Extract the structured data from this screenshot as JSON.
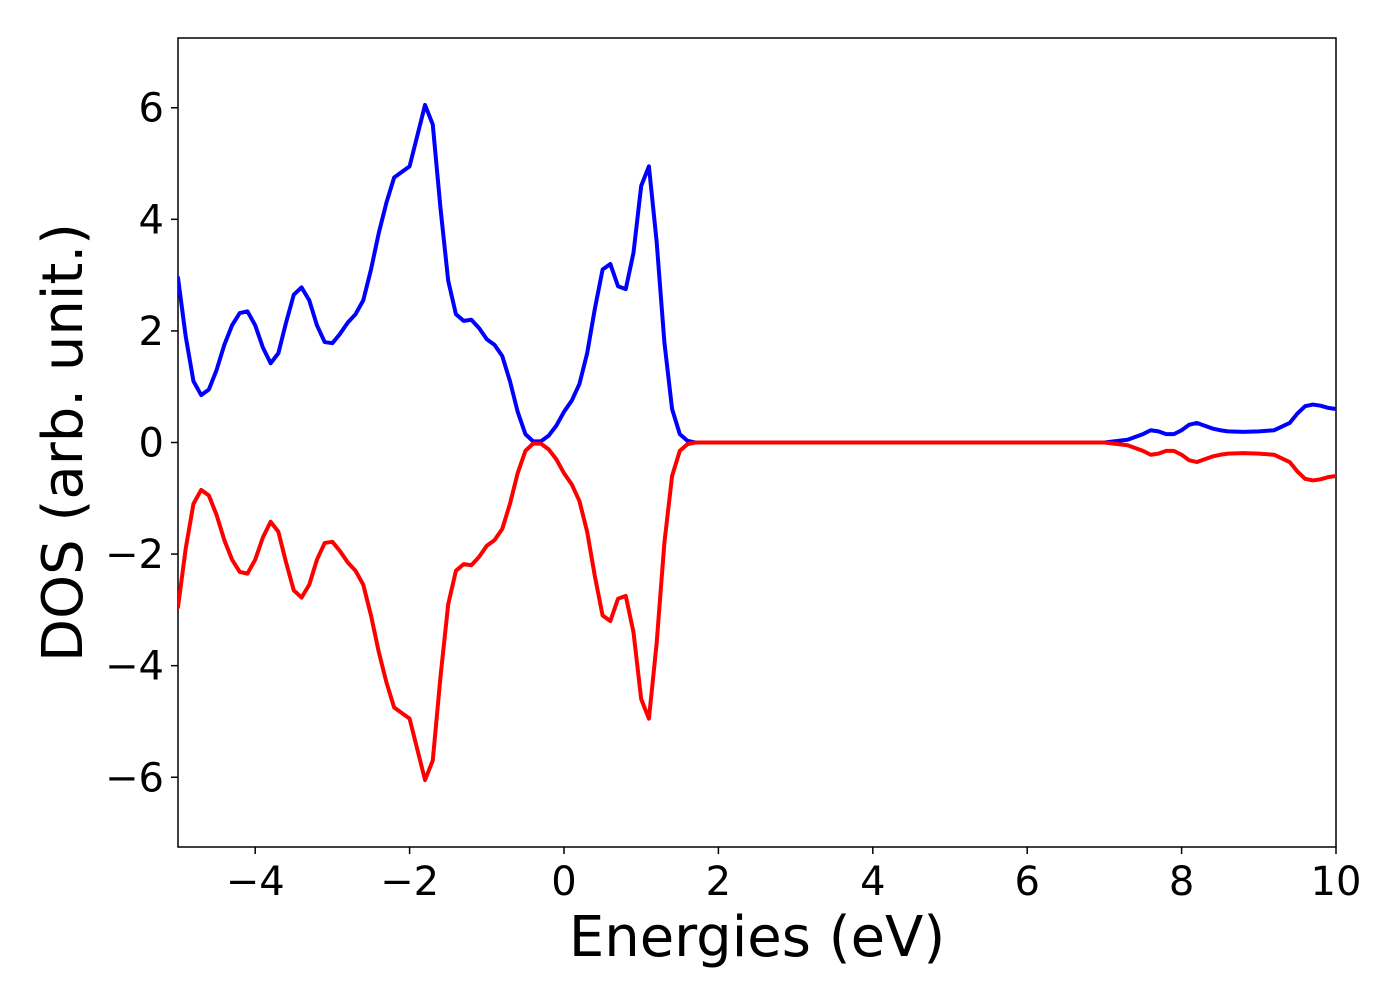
{
  "chart_data": {
    "type": "line",
    "title": "",
    "xlabel": "Energies (eV)",
    "ylabel": "DOS (arb. unit.)",
    "xlim": [
      -5,
      10
    ],
    "ylim": [
      -7.25,
      7.25
    ],
    "grid": false,
    "legend": "none",
    "x_ticks": [
      -4,
      -2,
      0,
      2,
      4,
      6,
      8,
      10
    ],
    "x_tick_labels": [
      "−4",
      "−2",
      "0",
      "2",
      "4",
      "6",
      "8",
      "10"
    ],
    "y_ticks": [
      -6,
      -4,
      -2,
      0,
      2,
      4,
      6
    ],
    "y_tick_labels": [
      "−6",
      "−4",
      "−2",
      "0",
      "2",
      "4",
      "6"
    ],
    "series": [
      {
        "color": "#0000ff",
        "x": [
          -5.0,
          -4.9,
          -4.8,
          -4.7,
          -4.6,
          -4.5,
          -4.4,
          -4.3,
          -4.2,
          -4.1,
          -4.0,
          -3.9,
          -3.8,
          -3.7,
          -3.6,
          -3.5,
          -3.4,
          -3.3,
          -3.2,
          -3.1,
          -3.0,
          -2.9,
          -2.8,
          -2.7,
          -2.6,
          -2.5,
          -2.4,
          -2.3,
          -2.2,
          -2.1,
          -2.0,
          -1.9,
          -1.8,
          -1.7,
          -1.6,
          -1.5,
          -1.4,
          -1.3,
          -1.2,
          -1.1,
          -1.0,
          -0.9,
          -0.8,
          -0.7,
          -0.6,
          -0.5,
          -0.4,
          -0.3,
          -0.2,
          -0.1,
          0.0,
          0.1,
          0.2,
          0.3,
          0.4,
          0.5,
          0.6,
          0.7,
          0.8,
          0.9,
          1.0,
          1.1,
          1.2,
          1.3,
          1.4,
          1.5,
          1.6,
          1.7,
          1.8,
          1.9,
          2.0,
          2.1,
          2.2,
          2.5,
          3.0,
          4.0,
          5.0,
          6.0,
          7.0,
          7.3,
          7.5,
          7.6,
          7.7,
          7.8,
          7.9,
          8.0,
          8.1,
          8.2,
          8.3,
          8.4,
          8.5,
          8.6,
          8.8,
          9.0,
          9.2,
          9.4,
          9.5,
          9.6,
          9.7,
          9.8,
          9.9,
          10.0
        ],
        "y": [
          2.95,
          1.9,
          1.1,
          0.85,
          0.95,
          1.3,
          1.75,
          2.1,
          2.32,
          2.35,
          2.1,
          1.7,
          1.42,
          1.6,
          2.15,
          2.65,
          2.78,
          2.55,
          2.1,
          1.8,
          1.78,
          1.95,
          2.15,
          2.3,
          2.55,
          3.1,
          3.75,
          4.3,
          4.75,
          4.85,
          4.95,
          5.5,
          6.05,
          5.7,
          4.2,
          2.9,
          2.3,
          2.18,
          2.2,
          2.05,
          1.85,
          1.75,
          1.55,
          1.1,
          0.55,
          0.15,
          0.02,
          0.02,
          0.12,
          0.3,
          0.55,
          0.75,
          1.05,
          1.6,
          2.4,
          3.1,
          3.2,
          2.8,
          2.75,
          3.4,
          4.6,
          4.95,
          3.6,
          1.8,
          0.6,
          0.15,
          0.03,
          0.0,
          0.0,
          0.0,
          0.0,
          0.0,
          0.0,
          0.0,
          0.0,
          0.0,
          0.0,
          0.0,
          0.0,
          0.05,
          0.15,
          0.22,
          0.2,
          0.15,
          0.15,
          0.22,
          0.32,
          0.35,
          0.3,
          0.25,
          0.22,
          0.2,
          0.19,
          0.2,
          0.22,
          0.35,
          0.52,
          0.65,
          0.68,
          0.66,
          0.62,
          0.6
        ]
      },
      {
        "color": "#ff0000",
        "x": [
          -5.0,
          -4.9,
          -4.8,
          -4.7,
          -4.6,
          -4.5,
          -4.4,
          -4.3,
          -4.2,
          -4.1,
          -4.0,
          -3.9,
          -3.8,
          -3.7,
          -3.6,
          -3.5,
          -3.4,
          -3.3,
          -3.2,
          -3.1,
          -3.0,
          -2.9,
          -2.8,
          -2.7,
          -2.6,
          -2.5,
          -2.4,
          -2.3,
          -2.2,
          -2.1,
          -2.0,
          -1.9,
          -1.8,
          -1.7,
          -1.6,
          -1.5,
          -1.4,
          -1.3,
          -1.2,
          -1.1,
          -1.0,
          -0.9,
          -0.8,
          -0.7,
          -0.6,
          -0.5,
          -0.4,
          -0.3,
          -0.2,
          -0.1,
          0.0,
          0.1,
          0.2,
          0.3,
          0.4,
          0.5,
          0.6,
          0.7,
          0.8,
          0.9,
          1.0,
          1.1,
          1.2,
          1.3,
          1.4,
          1.5,
          1.6,
          1.7,
          1.8,
          1.9,
          2.0,
          2.1,
          2.2,
          2.5,
          3.0,
          4.0,
          5.0,
          6.0,
          7.0,
          7.3,
          7.5,
          7.6,
          7.7,
          7.8,
          7.9,
          8.0,
          8.1,
          8.2,
          8.3,
          8.4,
          8.5,
          8.6,
          8.8,
          9.0,
          9.2,
          9.4,
          9.5,
          9.6,
          9.7,
          9.8,
          9.9,
          10.0
        ],
        "y": [
          -2.95,
          -1.9,
          -1.1,
          -0.85,
          -0.95,
          -1.3,
          -1.75,
          -2.1,
          -2.32,
          -2.35,
          -2.1,
          -1.7,
          -1.42,
          -1.6,
          -2.15,
          -2.65,
          -2.78,
          -2.55,
          -2.1,
          -1.8,
          -1.78,
          -1.95,
          -2.15,
          -2.3,
          -2.55,
          -3.1,
          -3.75,
          -4.3,
          -4.75,
          -4.85,
          -4.95,
          -5.5,
          -6.05,
          -5.7,
          -4.2,
          -2.9,
          -2.3,
          -2.18,
          -2.2,
          -2.05,
          -1.85,
          -1.75,
          -1.55,
          -1.1,
          -0.55,
          -0.15,
          -0.02,
          -0.02,
          -0.12,
          -0.3,
          -0.55,
          -0.75,
          -1.05,
          -1.6,
          -2.4,
          -3.1,
          -3.2,
          -2.8,
          -2.75,
          -3.4,
          -4.6,
          -4.95,
          -3.6,
          -1.8,
          -0.6,
          -0.15,
          -0.03,
          0.0,
          0.0,
          0.0,
          0.0,
          0.0,
          0.0,
          0.0,
          0.0,
          0.0,
          0.0,
          0.0,
          0.0,
          -0.05,
          -0.15,
          -0.22,
          -0.2,
          -0.15,
          -0.15,
          -0.22,
          -0.32,
          -0.35,
          -0.3,
          -0.25,
          -0.22,
          -0.2,
          -0.19,
          -0.2,
          -0.22,
          -0.35,
          -0.52,
          -0.65,
          -0.68,
          -0.66,
          -0.62,
          -0.6
        ]
      }
    ]
  }
}
